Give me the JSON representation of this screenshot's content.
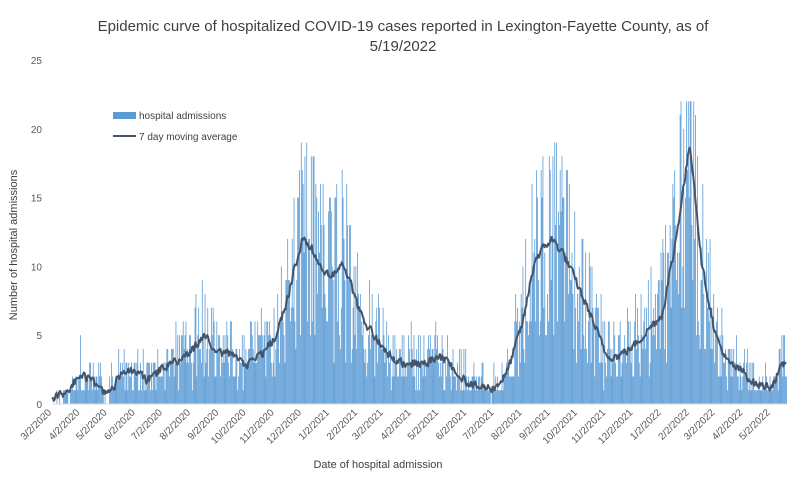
{
  "chart_data": {
    "type": "bar",
    "title_line1": "Epidemic curve of hospitalized COVID-19 cases reported in Lexington-Fayette County, as of",
    "title_line2": "5/19/2022",
    "xlabel": "Date of hospital admission",
    "ylabel": "Number of hospital admissions",
    "ylim": [
      0,
      25
    ],
    "yticks": [
      "0",
      "5",
      "10",
      "15",
      "20",
      "25"
    ],
    "x_start": "3/2/2020",
    "x_end": "5/19/2022",
    "xticks": [
      "3/2/2020",
      "4/2/2020",
      "5/2/2020",
      "6/2/2020",
      "7/2/2020",
      "8/2/2020",
      "9/2/2020",
      "10/2/2020",
      "11/2/2020",
      "12/2/2020",
      "1/2/2021",
      "2/2/2021",
      "3/2/2021",
      "4/2/2021",
      "5/2/2021",
      "6/2/2021",
      "7/2/2021",
      "8/2/2021",
      "9/2/2021",
      "10/2/2021",
      "11/2/2021",
      "12/2/2021",
      "1/2/2022",
      "2/2/2022",
      "3/2/2022",
      "4/2/2022",
      "5/2/2022"
    ],
    "grid": false,
    "legend_position": "top-left",
    "series": [
      {
        "name": "hospital admissions",
        "type": "bar",
        "color": "#5b9bd5",
        "trend": [
          [
            "3/2/2020",
            0.3
          ],
          [
            "3/20/2020",
            1
          ],
          [
            "4/2/2020",
            2.3
          ],
          [
            "4/15/2020",
            1.6
          ],
          [
            "5/2/2020",
            0.6
          ],
          [
            "5/20/2020",
            2.6
          ],
          [
            "6/2/2020",
            2.2
          ],
          [
            "6/15/2020",
            1.7
          ],
          [
            "7/2/2020",
            2.7
          ],
          [
            "7/20/2020",
            3.2
          ],
          [
            "8/2/2020",
            3.8
          ],
          [
            "8/15/2020",
            5
          ],
          [
            "9/2/2020",
            3.8
          ],
          [
            "9/15/2020",
            3.6
          ],
          [
            "10/2/2020",
            2.7
          ],
          [
            "10/15/2020",
            3.4
          ],
          [
            "11/2/2020",
            4.7
          ],
          [
            "11/15/2020",
            7.5
          ],
          [
            "12/2/2020",
            12
          ],
          [
            "12/15/2020",
            11
          ],
          [
            "1/2/2021",
            9
          ],
          [
            "1/15/2021",
            10.5
          ],
          [
            "2/2/2021",
            7
          ],
          [
            "2/15/2021",
            5.3
          ],
          [
            "3/2/2021",
            4
          ],
          [
            "3/15/2021",
            3
          ],
          [
            "4/2/2021",
            3
          ],
          [
            "4/15/2021",
            2.8
          ],
          [
            "5/2/2021",
            3.5
          ],
          [
            "5/15/2021",
            2.8
          ],
          [
            "6/2/2021",
            1.5
          ],
          [
            "6/15/2021",
            1.2
          ],
          [
            "7/2/2021",
            1.2
          ],
          [
            "7/15/2021",
            2.2
          ],
          [
            "8/2/2021",
            6
          ],
          [
            "8/15/2021",
            10.5
          ],
          [
            "9/2/2021",
            12
          ],
          [
            "9/15/2021",
            11
          ],
          [
            "10/2/2021",
            8.5
          ],
          [
            "10/15/2021",
            6.5
          ],
          [
            "11/2/2021",
            3.5
          ],
          [
            "11/15/2021",
            3.5
          ],
          [
            "12/2/2021",
            4.2
          ],
          [
            "12/15/2021",
            5.2
          ],
          [
            "1/2/2022",
            6.5
          ],
          [
            "1/15/2022",
            11
          ],
          [
            "2/2/2022",
            19
          ],
          [
            "2/15/2022",
            10
          ],
          [
            "3/2/2022",
            5
          ],
          [
            "3/15/2022",
            3
          ],
          [
            "4/2/2022",
            2.3
          ],
          [
            "4/15/2022",
            1.4
          ],
          [
            "5/2/2022",
            1.3
          ],
          [
            "5/19/2022",
            3.2
          ]
        ]
      },
      {
        "name": "7 day moving average",
        "type": "line",
        "color": "#44546a",
        "points": [
          [
            "3/2/2020",
            0.3
          ],
          [
            "3/20/2020",
            1
          ],
          [
            "4/2/2020",
            2.3
          ],
          [
            "4/15/2020",
            1.6
          ],
          [
            "5/2/2020",
            0.6
          ],
          [
            "5/20/2020",
            2.6
          ],
          [
            "6/2/2020",
            2.2
          ],
          [
            "6/15/2020",
            1.7
          ],
          [
            "7/2/2020",
            2.7
          ],
          [
            "7/20/2020",
            3.2
          ],
          [
            "8/2/2020",
            3.8
          ],
          [
            "8/15/2020",
            5
          ],
          [
            "9/2/2020",
            3.8
          ],
          [
            "9/15/2020",
            3.6
          ],
          [
            "10/2/2020",
            2.7
          ],
          [
            "10/15/2020",
            3.4
          ],
          [
            "11/2/2020",
            4.7
          ],
          [
            "11/15/2020",
            7.5
          ],
          [
            "12/2/2020",
            12
          ],
          [
            "12/15/2020",
            11
          ],
          [
            "1/2/2021",
            9
          ],
          [
            "1/15/2021",
            10.5
          ],
          [
            "2/2/2021",
            7
          ],
          [
            "2/15/2021",
            5.3
          ],
          [
            "3/2/2021",
            4
          ],
          [
            "3/15/2021",
            3
          ],
          [
            "4/2/2021",
            3
          ],
          [
            "4/15/2021",
            2.8
          ],
          [
            "5/2/2021",
            3.5
          ],
          [
            "5/15/2021",
            2.8
          ],
          [
            "6/2/2021",
            1.5
          ],
          [
            "6/15/2021",
            1.2
          ],
          [
            "7/2/2021",
            1.2
          ],
          [
            "7/15/2021",
            2.2
          ],
          [
            "8/2/2021",
            6
          ],
          [
            "8/15/2021",
            10.5
          ],
          [
            "9/2/2021",
            12
          ],
          [
            "9/15/2021",
            11
          ],
          [
            "10/2/2021",
            8.5
          ],
          [
            "10/15/2021",
            6.5
          ],
          [
            "11/2/2021",
            3.5
          ],
          [
            "11/15/2021",
            3.5
          ],
          [
            "12/2/2021",
            4.2
          ],
          [
            "12/15/2021",
            5.2
          ],
          [
            "1/2/2022",
            6.5
          ],
          [
            "1/15/2022",
            11
          ],
          [
            "2/2/2022",
            19
          ],
          [
            "2/15/2022",
            10
          ],
          [
            "3/2/2022",
            5
          ],
          [
            "3/15/2022",
            3
          ],
          [
            "4/2/2022",
            2.3
          ],
          [
            "4/15/2022",
            1.4
          ],
          [
            "5/2/2022",
            1.3
          ],
          [
            "5/19/2022",
            3.2
          ]
        ]
      }
    ]
  }
}
